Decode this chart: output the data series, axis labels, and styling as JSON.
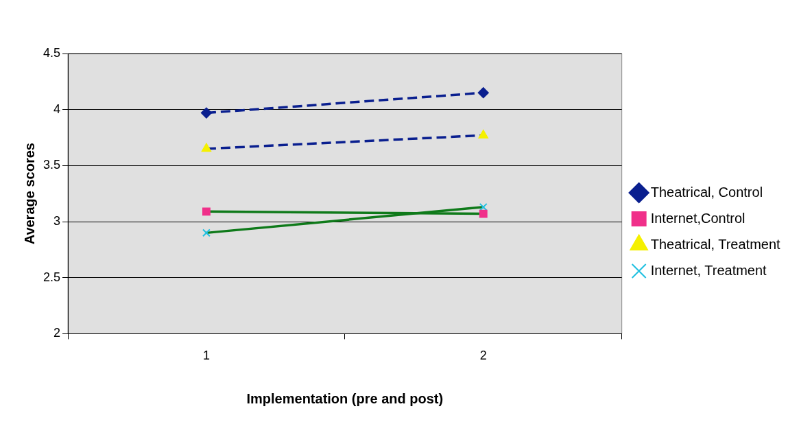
{
  "chart_data": {
    "type": "line",
    "xlabel": "Implementation (pre and post)",
    "ylabel": "Average scores",
    "categories": [
      "1",
      "2"
    ],
    "ylim": [
      2,
      4.5
    ],
    "yticks": [
      2,
      2.5,
      3,
      3.5,
      4,
      4.5
    ],
    "grid": "y",
    "legend": "right",
    "series": [
      {
        "name": "Theatrical, Control",
        "color": "#0a1f8f",
        "colors": [
          "#0a1f8f",
          "#0a1f8f"
        ],
        "marker": "diamond",
        "line_style": "dashed",
        "values": [
          3.97,
          4.15
        ]
      },
      {
        "name": "Internet,Control",
        "color": "#0f7a1a",
        "colors": [
          "#f0308a",
          "#f0308a"
        ],
        "marker": "square",
        "line_style": "solid",
        "values": [
          3.09,
          3.07
        ]
      },
      {
        "name": "Theatrical, Treatment",
        "color": "#0a1f8f",
        "colors": [
          "#f5f000",
          "#f5f000"
        ],
        "marker": "triangle",
        "line_style": "dashed",
        "values": [
          3.65,
          3.77
        ]
      },
      {
        "name": "Internet, Treatment",
        "color": "#0f7a1a",
        "colors": [
          "#20c0e0",
          "#20c0e0"
        ],
        "marker": "cross",
        "line_style": "solid",
        "values": [
          2.9,
          3.13
        ]
      }
    ]
  }
}
